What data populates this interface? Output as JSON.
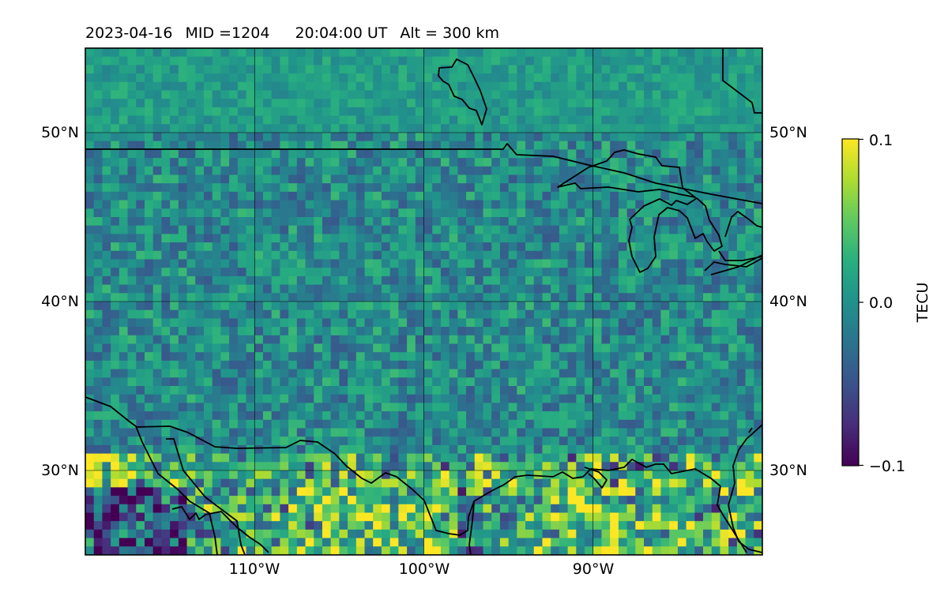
{
  "title": {
    "date": "2023-04-16",
    "mid": "MID =1204",
    "time": "20:04:00  UT",
    "alt": "Alt = 300 km"
  },
  "map": {
    "lon_range": [
      -120,
      -80
    ],
    "lat_range": [
      25,
      55
    ],
    "gridlines_lon": [
      -110,
      -100,
      -90
    ],
    "gridlines_lat": [
      30,
      40,
      50
    ],
    "x_tick_labels": [
      "110°W",
      "100°W",
      "90°W"
    ],
    "y_tick_labels_left": [
      "30°N",
      "40°N",
      "50°N"
    ],
    "y_tick_labels_right": [
      "30°N",
      "40°N",
      "50°N"
    ],
    "coastlines": true,
    "borders": true,
    "grid": true
  },
  "chart_data": {
    "type": "heatmap",
    "variable": "TECU",
    "colormap": "viridis",
    "vmin": -0.1,
    "vmax": 0.1,
    "colorbar": {
      "label": "TECU",
      "ticks": [
        -0.1,
        0.0,
        0.1
      ],
      "tick_labels": [
        "−0.1",
        "0.0",
        "0.1"
      ]
    }
  }
}
